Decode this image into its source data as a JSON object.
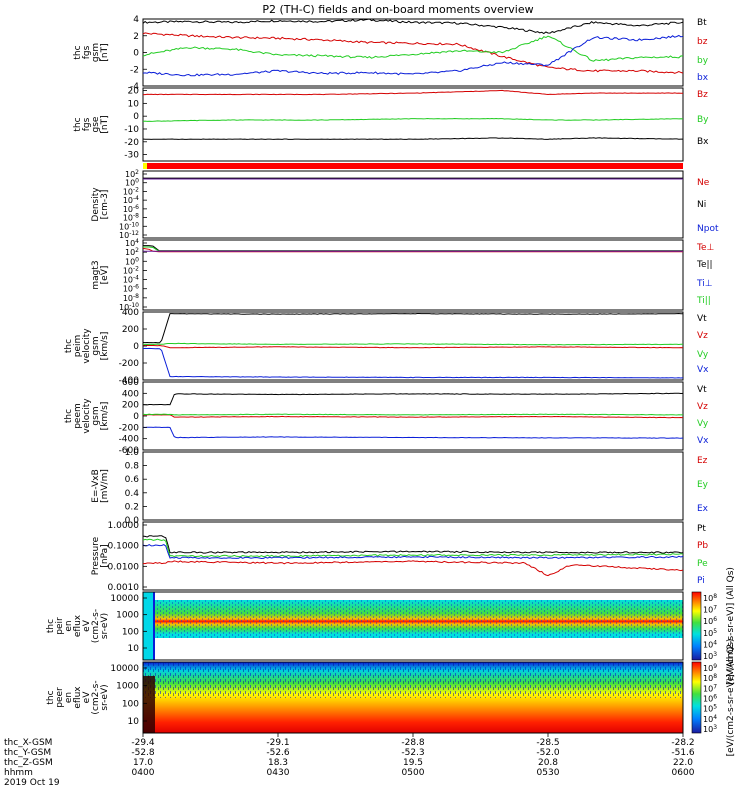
{
  "title": "P2 (TH-C) fields and on-board moments overview",
  "colors": {
    "black": "#000000",
    "red": "#d40000",
    "green": "#22cc22",
    "blue": "#0a1ed8",
    "purple": "#6a1fa0",
    "cyan": "#00d8e8"
  },
  "chart_data": [
    {
      "type": "line",
      "ylabel": [
        "thc",
        "fgs",
        "gsm",
        "[nT]"
      ],
      "ylim": [
        -4,
        4
      ],
      "yticks": [
        "4",
        "2",
        "0",
        "-2",
        "-4"
      ],
      "legend": [
        {
          "name": "Bt",
          "color": "black"
        },
        {
          "name": "bz",
          "color": "red"
        },
        {
          "name": "by",
          "color": "green"
        },
        {
          "name": "bx",
          "color": "blue"
        }
      ],
      "series": [
        {
          "name": "Bt",
          "color": "black",
          "x": [
            "0400",
            "0410",
            "0420",
            "0430",
            "0440",
            "0450",
            "0500",
            "0510",
            "0520",
            "0530",
            "0540",
            "0550",
            "0600"
          ],
          "values": [
            3.6,
            3.7,
            3.6,
            3.8,
            3.7,
            3.9,
            3.6,
            3.5,
            3.0,
            2.3,
            3.6,
            3.2,
            3.6
          ]
        },
        {
          "name": "bz",
          "color": "red",
          "x": [
            "0400",
            "0410",
            "0420",
            "0430",
            "0440",
            "0450",
            "0500",
            "0510",
            "0520",
            "0530",
            "0540",
            "0550",
            "0600"
          ],
          "values": [
            2.3,
            2.0,
            1.8,
            1.7,
            1.5,
            1.2,
            1.1,
            1.0,
            -0.5,
            -1.8,
            -2.2,
            -2.2,
            -2.4
          ]
        },
        {
          "name": "by",
          "color": "green",
          "x": [
            "0400",
            "0410",
            "0420",
            "0430",
            "0440",
            "0450",
            "0500",
            "0510",
            "0520",
            "0530",
            "0540",
            "0550",
            "0600"
          ],
          "values": [
            -0.3,
            0.6,
            0.4,
            -0.3,
            -0.4,
            -0.6,
            -0.2,
            0.2,
            0.0,
            2.0,
            -1.0,
            -0.6,
            -0.5
          ]
        },
        {
          "name": "bx",
          "color": "blue",
          "x": [
            "0400",
            "0410",
            "0420",
            "0430",
            "0440",
            "0450",
            "0500",
            "0510",
            "0520",
            "0530",
            "0540",
            "0550",
            "0600"
          ],
          "values": [
            -2.4,
            -2.7,
            -2.6,
            -2.2,
            -2.5,
            -2.4,
            -2.6,
            -2.2,
            -1.2,
            -1.5,
            1.8,
            1.5,
            2.0
          ]
        }
      ]
    },
    {
      "type": "line",
      "ylabel": [
        "thc",
        "fgs",
        "gse",
        "[nT]"
      ],
      "ylim": [
        -35,
        22
      ],
      "yticks": [
        "20",
        "10",
        "0",
        "-10",
        "-20",
        "-30"
      ],
      "legend": [
        {
          "name": "Bz",
          "color": "red"
        },
        {
          "name": "By",
          "color": "green"
        },
        {
          "name": "Bx",
          "color": "black"
        }
      ],
      "series": [
        {
          "name": "Bz",
          "color": "red",
          "x": [
            "0400",
            "0420",
            "0440",
            "0500",
            "0520",
            "0530",
            "0540",
            "0600"
          ],
          "values": [
            17,
            17,
            17,
            18,
            20,
            17,
            18,
            18
          ]
        },
        {
          "name": "By",
          "color": "green",
          "x": [
            "0400",
            "0420",
            "0440",
            "0500",
            "0520",
            "0530",
            "0540",
            "0600"
          ],
          "values": [
            -4,
            -3,
            -3,
            -2,
            -2,
            -3,
            -3,
            -2
          ]
        },
        {
          "name": "Bx",
          "color": "black",
          "x": [
            "0400",
            "0420",
            "0440",
            "0500",
            "0520",
            "0530",
            "0540",
            "0600"
          ],
          "values": [
            -18,
            -18,
            -18,
            -18,
            -17,
            -18,
            -17,
            -18
          ]
        }
      ]
    },
    {
      "type": "line",
      "scale": "log",
      "ylabel": [
        "Density",
        "[cm-3]"
      ],
      "ylim": [
        -13,
        2
      ],
      "yticks": [
        "102",
        "100",
        "10-2",
        "10-4",
        "10-6",
        "10-8",
        "10-10",
        "10-12"
      ],
      "legend": [
        {
          "name": "Ne",
          "color": "red"
        },
        {
          "name": "Ni",
          "color": "black"
        },
        {
          "name": "Npot",
          "color": "blue"
        }
      ],
      "series": [
        {
          "name": "Ne",
          "color": "red",
          "log10": [
            0.3,
            0.3
          ]
        },
        {
          "name": "Ni",
          "color": "black",
          "log10": [
            0.4,
            0.4
          ]
        },
        {
          "name": "Npot",
          "color": "purple",
          "log10": [
            0.2,
            0.2
          ]
        }
      ]
    },
    {
      "type": "line",
      "scale": "log",
      "ylabel": [
        "magt3",
        "[eV]"
      ],
      "ylim": [
        -11,
        4
      ],
      "yticks": [
        "104",
        "102",
        "100",
        "10-2",
        "10-4",
        "10-6",
        "10-8",
        "10-10"
      ],
      "legend": [
        {
          "name": "Te⊥",
          "color": "red"
        },
        {
          "name": "Te||",
          "color": "black"
        },
        {
          "name": "Ti⊥",
          "color": "blue"
        },
        {
          "name": "Ti||",
          "color": "green"
        }
      ],
      "series": [
        {
          "name": "Te||",
          "color": "black",
          "log10": [
            2.8,
            2.8,
            2.7,
            1.7,
            1.7,
            1.7
          ]
        },
        {
          "name": "Ti||",
          "color": "green",
          "log10": [
            2.5,
            2.5,
            2.4,
            1.6,
            1.6,
            1.6
          ]
        },
        {
          "name": "Te⊥",
          "color": "red",
          "log10": [
            2.2,
            2.0,
            1.6,
            1.5,
            1.5,
            1.5
          ]
        },
        {
          "name": "Ti⊥",
          "color": "purple",
          "log10": [
            1.6,
            1.6,
            1.6,
            1.6,
            1.6,
            1.6
          ]
        }
      ]
    },
    {
      "type": "line",
      "ylabel": [
        "thc",
        "peim",
        "velocity",
        "gsm",
        "[km/s]"
      ],
      "ylim": [
        -400,
        400
      ],
      "yticks": [
        "400",
        "200",
        "0",
        "-200",
        "-400"
      ],
      "legend": [
        {
          "name": "Vt",
          "color": "black"
        },
        {
          "name": "Vz",
          "color": "red"
        },
        {
          "name": "Vy",
          "color": "green"
        },
        {
          "name": "Vx",
          "color": "blue"
        }
      ],
      "series": [
        {
          "name": "Vt",
          "color": "black",
          "x": [
            "0400",
            "0404",
            "0406",
            "0430",
            "0500",
            "0530",
            "0600"
          ],
          "values": [
            40,
            40,
            380,
            375,
            380,
            375,
            380
          ]
        },
        {
          "name": "Vz",
          "color": "red",
          "x": [
            "0400",
            "0404",
            "0406",
            "0430",
            "0500",
            "0530",
            "0600"
          ],
          "values": [
            5,
            5,
            -20,
            -10,
            -20,
            -10,
            -20
          ]
        },
        {
          "name": "Vy",
          "color": "green",
          "x": [
            "0400",
            "0404",
            "0406",
            "0430",
            "0500",
            "0530",
            "0600"
          ],
          "values": [
            20,
            20,
            30,
            20,
            25,
            15,
            20
          ]
        },
        {
          "name": "Vx",
          "color": "blue",
          "x": [
            "0400",
            "0404",
            "0406",
            "0430",
            "0500",
            "0530",
            "0600"
          ],
          "values": [
            -30,
            -30,
            -360,
            -365,
            -370,
            -370,
            -375
          ]
        }
      ]
    },
    {
      "type": "line",
      "ylabel": [
        "thc",
        "peem",
        "velocity",
        "gsm",
        "[km/s]"
      ],
      "ylim": [
        -600,
        600
      ],
      "yticks": [
        "600",
        "400",
        "200",
        "0",
        "-200",
        "-400",
        "-600"
      ],
      "legend": [
        {
          "name": "Vt",
          "color": "black"
        },
        {
          "name": "Vz",
          "color": "red"
        },
        {
          "name": "Vy",
          "color": "green"
        },
        {
          "name": "Vx",
          "color": "blue"
        }
      ],
      "series": [
        {
          "name": "Vt",
          "color": "black",
          "x": [
            "0400",
            "0406",
            "0407",
            "0430",
            "0500",
            "0530",
            "0600"
          ],
          "values": [
            200,
            200,
            390,
            380,
            390,
            385,
            400
          ]
        },
        {
          "name": "Vz",
          "color": "red",
          "x": [
            "0400",
            "0406",
            "0407",
            "0430",
            "0500",
            "0530",
            "0600"
          ],
          "values": [
            20,
            20,
            -20,
            -10,
            -20,
            -10,
            -30
          ]
        },
        {
          "name": "Vy",
          "color": "green",
          "x": [
            "0400",
            "0406",
            "0407",
            "0430",
            "0500",
            "0530",
            "0600"
          ],
          "values": [
            30,
            30,
            20,
            30,
            20,
            30,
            20
          ]
        },
        {
          "name": "Vx",
          "color": "blue",
          "x": [
            "0400",
            "0406",
            "0407",
            "0430",
            "0500",
            "0530",
            "0600"
          ],
          "values": [
            -200,
            -200,
            -380,
            -370,
            -380,
            -385,
            -390
          ]
        }
      ]
    },
    {
      "type": "line",
      "ylabel": [
        "E=-VxB",
        "[mV/m]"
      ],
      "ylim": [
        0,
        1
      ],
      "yticks": [
        "1.0",
        "0.8",
        "0.6",
        "0.4",
        "0.2",
        "0.0"
      ],
      "legend": [
        {
          "name": "Ez",
          "color": "red"
        },
        {
          "name": "Ey",
          "color": "green"
        },
        {
          "name": "Ex",
          "color": "blue"
        }
      ],
      "series": []
    },
    {
      "type": "line",
      "scale": "log",
      "ylabel": [
        "Pressure",
        "[nPa]"
      ],
      "ylim": [
        -3.8,
        0
      ],
      "yticks": [
        "1.0000",
        "0.1000",
        "0.0100",
        "0.0010"
      ],
      "legend": [
        {
          "name": "Pt",
          "color": "black"
        },
        {
          "name": "Pb",
          "color": "red"
        },
        {
          "name": "Pe",
          "color": "green"
        },
        {
          "name": "Pi",
          "color": "blue"
        }
      ],
      "series": [
        {
          "name": "Pt",
          "color": "black",
          "x": [
            "0400",
            "0405",
            "0406",
            "0430",
            "0500",
            "0530",
            "0600"
          ],
          "log10": [
            -0.8,
            -0.8,
            -1.7,
            -1.7,
            -1.65,
            -1.7,
            -1.7
          ]
        },
        {
          "name": "Pe",
          "color": "green",
          "x": [
            "0400",
            "0405",
            "0406",
            "0430",
            "0500",
            "0530",
            "0600"
          ],
          "log10": [
            -1.0,
            -1.0,
            -1.9,
            -1.9,
            -1.85,
            -1.85,
            -1.8
          ]
        },
        {
          "name": "Pi",
          "color": "blue",
          "x": [
            "0400",
            "0405",
            "0406",
            "0430",
            "0500",
            "0530",
            "0600"
          ],
          "log10": [
            -1.3,
            -1.3,
            -2.0,
            -2.0,
            -1.95,
            -2.0,
            -1.95
          ]
        },
        {
          "name": "Pb",
          "color": "red",
          "x": [
            "0400",
            "0405",
            "0406",
            "0430",
            "0500",
            "0525",
            "0530",
            "0535",
            "0600"
          ],
          "log10": [
            -2.3,
            -2.3,
            -2.2,
            -2.3,
            -2.2,
            -2.3,
            -3.0,
            -2.4,
            -2.7
          ]
        }
      ]
    },
    {
      "type": "heatmap",
      "ylabel": [
        "thc",
        "peir",
        "en",
        "eflux",
        "eV",
        "(cm2-s-",
        "sr-eV)"
      ],
      "ylim": [
        5,
        10000
      ],
      "yticks": [
        "10000",
        "1000",
        "100",
        "10"
      ],
      "colorbar": {
        "ticks": [
          "108",
          "107",
          "106",
          "105",
          "104",
          "103"
        ],
        "label": "[eV/(cm2-s-sr-eV)] (All Qs)"
      }
    },
    {
      "type": "heatmap",
      "ylabel": [
        "thc",
        "peer",
        "en",
        "eflux",
        "eV",
        "(cm2-s-",
        "sr-eV)"
      ],
      "ylim": [
        5,
        10000
      ],
      "yticks": [
        "10000",
        "1000",
        "100",
        "10"
      ],
      "colorbar": {
        "ticks": [
          "109",
          "108",
          "107",
          "106",
          "105",
          "104",
          "103"
        ],
        "label": "[eV/(cm2-s-sr-eV)] (All Qs)"
      }
    }
  ],
  "xaxis": {
    "rows": [
      {
        "label": "thc_X-GSM",
        "values": [
          "-29.4",
          "-29.1",
          "-28.8",
          "-28.5",
          "-28.2"
        ]
      },
      {
        "label": "thc_Y-GSM",
        "values": [
          "-52.8",
          "-52.6",
          "-52.3",
          "-52.0",
          "-51.6"
        ]
      },
      {
        "label": "thc_Z-GSM",
        "values": [
          "17.0",
          "18.3",
          "19.5",
          "20.8",
          "22.0"
        ]
      },
      {
        "label": "hhmm",
        "values": [
          "0400",
          "0430",
          "0500",
          "0530",
          "0600"
        ]
      }
    ],
    "date": "2019 Oct 19"
  }
}
